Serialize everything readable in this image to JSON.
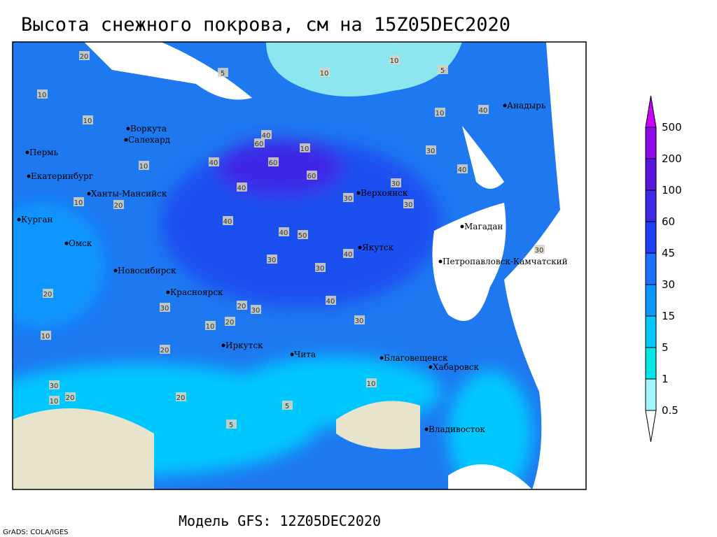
{
  "header": {
    "title": "Высота снежного покрова, см на 15Z05DEC2020"
  },
  "legend": {
    "levels": [
      500,
      200,
      100,
      60,
      45,
      30,
      15,
      5,
      1,
      0.5
    ],
    "colors": [
      "#c800ff",
      "#8c0ae6",
      "#5a14dc",
      "#3c28e6",
      "#1e3cf5",
      "#1e6eff",
      "#0a96ff",
      "#00c8ff",
      "#00e6e6",
      "#a0f5ff",
      "#ffffff"
    ]
  },
  "cities": [
    "Воркута",
    "Салехард",
    "Пермь",
    "Екатеринбург",
    "Ханты-Мансийск",
    "Курган",
    "Омск",
    "Новосибирск",
    "Красноярск",
    "Иркутск",
    "Чита",
    "Благовещенск",
    "Хабаровск",
    "Владивосток",
    "Якутск",
    "Верхоянск",
    "Магадан",
    "Петропавловск-Камчатский",
    "Анадырь"
  ],
  "contour_labels": [
    20,
    5,
    10,
    10,
    5,
    10,
    10,
    40,
    60,
    10,
    40,
    60,
    60,
    40,
    30,
    30,
    30,
    30,
    40,
    40,
    40,
    40,
    50,
    40,
    30,
    30,
    40,
    30,
    20,
    30,
    30,
    20,
    10,
    20,
    10,
    20,
    20,
    5,
    5,
    10,
    30,
    20,
    10,
    10,
    30,
    20,
    10,
    10
  ],
  "footer": {
    "model": "Модель GFS: 12Z05DEC2020",
    "credit": "GrADS: COLA/IGES"
  }
}
